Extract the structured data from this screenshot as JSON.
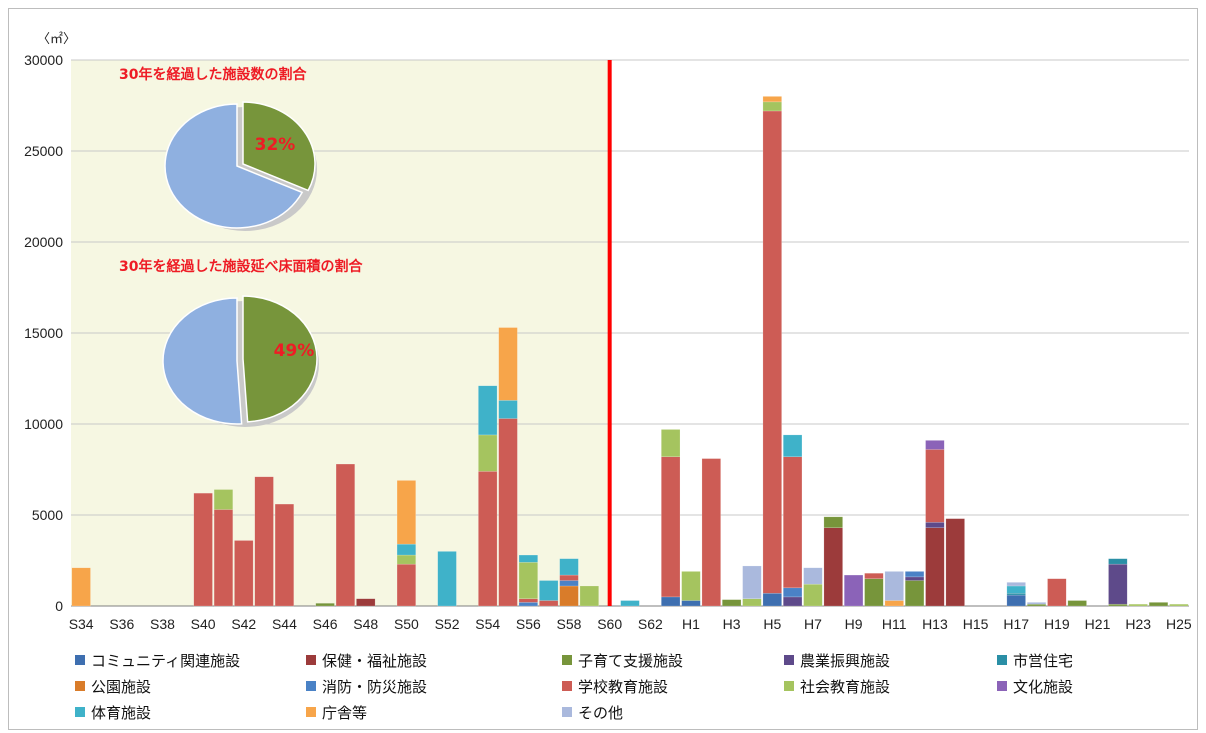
{
  "chart_data": {
    "type": "bar",
    "stacked": true,
    "unit_label": "〈㎡〉",
    "ylim": [
      0,
      30000
    ],
    "yticks": [
      0,
      5000,
      10000,
      15000,
      20000,
      25000,
      30000
    ],
    "grid": true,
    "categories": [
      "S34",
      "S35",
      "S36",
      "S37",
      "S38",
      "S39",
      "S40",
      "S41",
      "S42",
      "S43",
      "S44",
      "S45",
      "S46",
      "S47",
      "S48",
      "S49",
      "S50",
      "S51",
      "S52",
      "S53",
      "S54",
      "S55",
      "S56",
      "S57",
      "S58",
      "S59",
      "S60",
      "S61",
      "S62",
      "S63",
      "H1",
      "H2",
      "H3",
      "H4",
      "H5",
      "H6",
      "H7",
      "H8",
      "H9",
      "H10",
      "H11",
      "H12",
      "H13",
      "H14",
      "H15",
      "H16",
      "H17",
      "H18",
      "H19",
      "H20",
      "H21",
      "H22",
      "H23",
      "H24",
      "H25"
    ],
    "x_tick_labels": [
      "S34",
      "",
      "S36",
      "",
      "S38",
      "",
      "S40",
      "",
      "S42",
      "",
      "S44",
      "",
      "S46",
      "",
      "S48",
      "",
      "S50",
      "",
      "S52",
      "",
      "S54",
      "",
      "S56",
      "",
      "S58",
      "",
      "S60",
      "",
      "S62",
      "",
      "H1",
      "",
      "H3",
      "",
      "H5",
      "",
      "H7",
      "",
      "H9",
      "",
      "H11",
      "",
      "H13",
      "",
      "H15",
      "",
      "H17",
      "",
      "H19",
      "",
      "H21",
      "",
      "H23",
      "",
      "H25"
    ],
    "legend_placement": "bottom",
    "series": [
      {
        "name": "コミュニティ関連施設",
        "color": "#3e6fb0",
        "values": [
          0,
          0,
          0,
          0,
          0,
          0,
          0,
          0,
          0,
          0,
          0,
          0,
          0,
          0,
          0,
          0,
          0,
          0,
          0,
          0,
          0,
          0,
          0,
          0,
          0,
          0,
          0,
          0,
          0,
          500,
          300,
          0,
          0,
          0,
          700,
          0,
          0,
          0,
          0,
          0,
          0,
          0,
          0,
          0,
          0,
          0,
          600,
          0,
          0,
          0,
          0,
          0,
          0,
          0,
          0
        ]
      },
      {
        "name": "保健・福祉施設",
        "color": "#9c3b3b",
        "values": [
          0,
          0,
          0,
          0,
          0,
          0,
          0,
          0,
          0,
          0,
          0,
          0,
          0,
          0,
          400,
          0,
          0,
          0,
          0,
          0,
          0,
          0,
          0,
          0,
          0,
          0,
          0,
          0,
          0,
          0,
          0,
          0,
          0,
          0,
          0,
          0,
          0,
          4300,
          0,
          0,
          0,
          0,
          4300,
          4800,
          0,
          0,
          0,
          0,
          0,
          0,
          0,
          0,
          0,
          0,
          0
        ]
      },
      {
        "name": "子育て支援施設",
        "color": "#77953b",
        "values": [
          0,
          0,
          0,
          0,
          0,
          0,
          0,
          0,
          0,
          0,
          0,
          0,
          150,
          0,
          0,
          0,
          0,
          0,
          0,
          0,
          0,
          0,
          0,
          0,
          0,
          0,
          0,
          0,
          0,
          0,
          0,
          0,
          350,
          0,
          0,
          0,
          0,
          600,
          0,
          1500,
          0,
          1400,
          0,
          0,
          0,
          0,
          0,
          100,
          0,
          300,
          0,
          100,
          0,
          200,
          0
        ]
      },
      {
        "name": "農業振興施設",
        "color": "#5e4a8a",
        "values": [
          0,
          0,
          0,
          0,
          0,
          0,
          0,
          0,
          0,
          0,
          0,
          0,
          0,
          0,
          0,
          0,
          0,
          0,
          0,
          0,
          0,
          0,
          0,
          0,
          0,
          0,
          0,
          0,
          0,
          0,
          0,
          0,
          0,
          0,
          0,
          500,
          0,
          0,
          0,
          0,
          0,
          200,
          300,
          0,
          0,
          0,
          0,
          0,
          0,
          0,
          0,
          2200,
          0,
          0,
          0
        ]
      },
      {
        "name": "市営住宅",
        "color": "#2a8fa6",
        "values": [
          0,
          0,
          0,
          0,
          0,
          0,
          0,
          0,
          0,
          0,
          0,
          0,
          0,
          0,
          0,
          0,
          0,
          0,
          0,
          0,
          0,
          0,
          0,
          0,
          0,
          0,
          0,
          0,
          0,
          0,
          0,
          0,
          0,
          0,
          0,
          0,
          0,
          0,
          0,
          0,
          0,
          0,
          0,
          0,
          0,
          0,
          100,
          0,
          0,
          0,
          0,
          300,
          0,
          0,
          0
        ]
      },
      {
        "name": "公園施設",
        "color": "#d97c2a",
        "values": [
          0,
          0,
          0,
          0,
          0,
          0,
          0,
          0,
          0,
          0,
          0,
          0,
          0,
          0,
          0,
          0,
          0,
          0,
          0,
          0,
          0,
          0,
          0,
          0,
          1100,
          0,
          0,
          0,
          0,
          0,
          0,
          0,
          0,
          0,
          0,
          0,
          0,
          0,
          0,
          0,
          0,
          0,
          0,
          0,
          0,
          0,
          0,
          0,
          0,
          0,
          0,
          0,
          0,
          0,
          0
        ]
      },
      {
        "name": "消防・防災施設",
        "color": "#4a82c6",
        "values": [
          0,
          0,
          0,
          0,
          0,
          0,
          0,
          0,
          0,
          0,
          0,
          0,
          0,
          0,
          0,
          0,
          0,
          0,
          0,
          0,
          0,
          0,
          200,
          0,
          300,
          0,
          0,
          0,
          0,
          0,
          0,
          0,
          0,
          0,
          0,
          500,
          0,
          0,
          0,
          0,
          0,
          300,
          0,
          0,
          0,
          0,
          0,
          0,
          0,
          0,
          0,
          0,
          0,
          0,
          0
        ]
      },
      {
        "name": "学校教育施設",
        "color": "#cd5c55",
        "values": [
          0,
          0,
          0,
          0,
          0,
          0,
          6200,
          5300,
          3600,
          7100,
          5600,
          0,
          0,
          7800,
          0,
          0,
          2300,
          0,
          0,
          0,
          7400,
          10300,
          200,
          300,
          300,
          0,
          0,
          0,
          0,
          7700,
          0,
          8100,
          0,
          0,
          26500,
          7200,
          0,
          0,
          0,
          300,
          0,
          0,
          4000,
          0,
          0,
          0,
          0,
          0,
          1500,
          0,
          0,
          0,
          0,
          0,
          0
        ]
      },
      {
        "name": "社会教育施設",
        "color": "#a5c45f",
        "values": [
          0,
          0,
          0,
          0,
          0,
          0,
          0,
          1100,
          0,
          0,
          0,
          0,
          0,
          0,
          0,
          0,
          500,
          0,
          0,
          0,
          2000,
          0,
          2000,
          0,
          0,
          1100,
          0,
          0,
          0,
          1500,
          1600,
          0,
          0,
          400,
          500,
          0,
          1200,
          0,
          0,
          0,
          0,
          0,
          0,
          0,
          0,
          0,
          0,
          0,
          0,
          0,
          0,
          0,
          100,
          0,
          100
        ]
      },
      {
        "name": "文化施設",
        "color": "#8b63b8",
        "values": [
          0,
          0,
          0,
          0,
          0,
          0,
          0,
          0,
          0,
          0,
          0,
          0,
          0,
          0,
          0,
          0,
          0,
          0,
          0,
          0,
          0,
          0,
          0,
          0,
          0,
          0,
          0,
          0,
          0,
          0,
          0,
          0,
          0,
          0,
          0,
          0,
          0,
          0,
          1700,
          0,
          0,
          0,
          500,
          0,
          0,
          0,
          0,
          0,
          0,
          0,
          0,
          0,
          0,
          0,
          0
        ]
      },
      {
        "name": "体育施設",
        "color": "#3fb2c9",
        "values": [
          0,
          0,
          0,
          0,
          0,
          0,
          0,
          0,
          0,
          0,
          0,
          0,
          0,
          0,
          0,
          0,
          600,
          0,
          3000,
          0,
          2700,
          1000,
          400,
          1100,
          900,
          0,
          0,
          300,
          0,
          0,
          0,
          0,
          0,
          0,
          0,
          1200,
          0,
          0,
          0,
          0,
          0,
          0,
          0,
          0,
          0,
          0,
          400,
          0,
          0,
          0,
          0,
          0,
          0,
          0,
          0
        ]
      },
      {
        "name": "庁舎等",
        "color": "#f7a54a",
        "values": [
          2100,
          0,
          0,
          0,
          0,
          0,
          0,
          0,
          0,
          0,
          0,
          0,
          0,
          0,
          0,
          0,
          3500,
          0,
          0,
          0,
          0,
          4000,
          0,
          0,
          0,
          0,
          0,
          0,
          0,
          0,
          0,
          0,
          0,
          0,
          300,
          0,
          0,
          0,
          0,
          0,
          300,
          0,
          0,
          0,
          0,
          0,
          0,
          0,
          0,
          0,
          0,
          0,
          0,
          0,
          0
        ]
      },
      {
        "name": "その他",
        "color": "#aab9dd",
        "values": [
          0,
          0,
          0,
          0,
          0,
          0,
          0,
          0,
          0,
          0,
          0,
          0,
          0,
          0,
          0,
          0,
          0,
          0,
          0,
          0,
          0,
          0,
          0,
          0,
          0,
          0,
          0,
          0,
          0,
          0,
          0,
          0,
          0,
          1800,
          0,
          0,
          900,
          0,
          0,
          0,
          1600,
          0,
          0,
          0,
          0,
          0,
          200,
          100,
          0,
          0,
          0,
          0,
          0,
          0,
          0
        ]
      }
    ],
    "divider_after": "S60",
    "divider_color": "#ff0000",
    "highlight_color": "#f6f7e2",
    "insets": [
      {
        "title": "30年を経過した施設数の割合",
        "percent": 32,
        "label": "32%",
        "slice_color": "#77953b",
        "rest_color": "#8fb0e0"
      },
      {
        "title": "30年を経過した施設延べ床面積の割合",
        "percent": 49,
        "label": "49%",
        "slice_color": "#77953b",
        "rest_color": "#8fb0e0"
      }
    ]
  }
}
